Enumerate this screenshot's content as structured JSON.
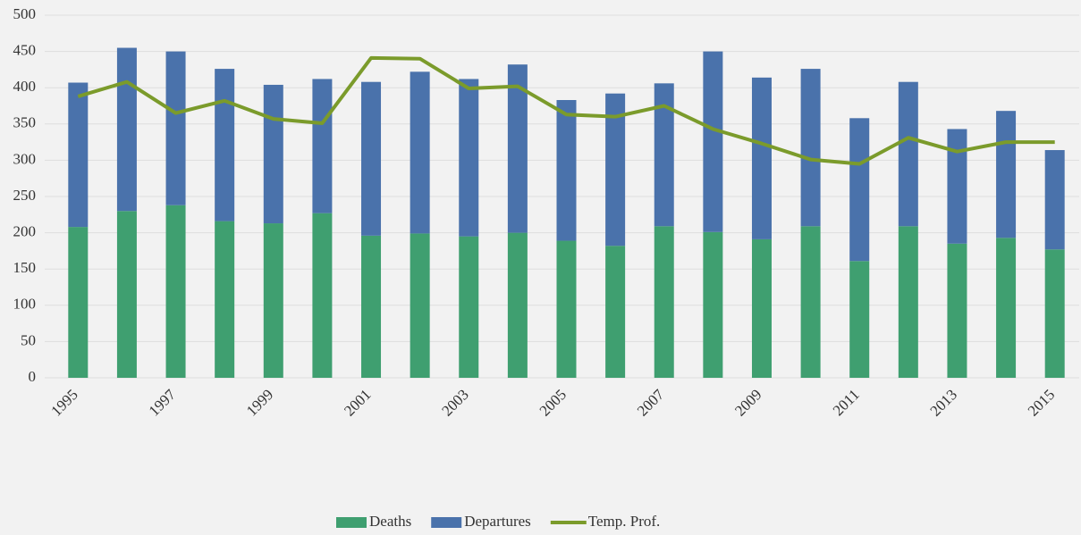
{
  "chart_data": {
    "type": "bar-line",
    "categories": [
      "1995",
      null,
      "1997",
      null,
      "1999",
      null,
      "2001",
      null,
      "2003",
      null,
      "2005",
      null,
      "2007",
      null,
      "2009",
      null,
      "2011",
      null,
      "2013",
      null,
      "2015"
    ],
    "series": [
      {
        "name": "Deaths",
        "color": "#3f9f70",
        "type": "bar",
        "values": [
          208,
          230,
          238,
          216,
          213,
          227,
          196,
          199,
          195,
          200,
          189,
          182,
          209,
          201,
          191,
          209,
          161,
          209,
          185,
          193,
          177
        ]
      },
      {
        "name": "Departures",
        "color": "#4a72ab",
        "type": "bar",
        "values": [
          199,
          225,
          212,
          210,
          191,
          185,
          212,
          223,
          217,
          232,
          194,
          210,
          197,
          249,
          223,
          217,
          197,
          199,
          158,
          175,
          137
        ]
      },
      {
        "name": "Temp. Prof.",
        "color": "#7b9b2b",
        "type": "line",
        "values": [
          388,
          408,
          365,
          382,
          357,
          351,
          441,
          440,
          399,
          402,
          363,
          360,
          375,
          343,
          323,
          301,
          295,
          331,
          312,
          325,
          325
        ]
      }
    ],
    "ylim": [
      0,
      500
    ],
    "yticks": [
      0,
      50,
      100,
      150,
      200,
      250,
      300,
      350,
      400,
      450,
      500
    ],
    "grid": true,
    "legend": "bottom"
  }
}
